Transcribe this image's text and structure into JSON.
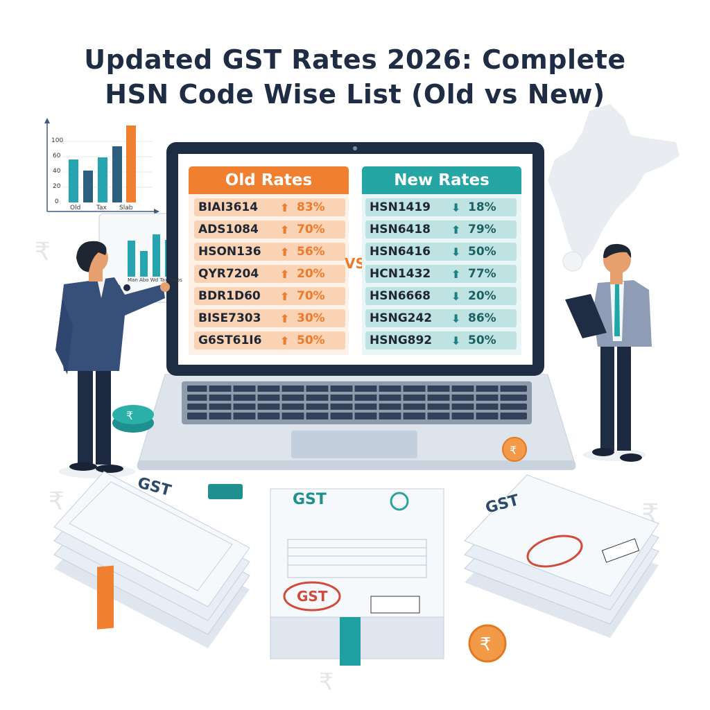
{
  "title": {
    "line1": "Updated GST Rates 2026: Complete",
    "line2": "HSN Code Wise List (Old vs New)"
  },
  "colors": {
    "old": "#f08030",
    "old_row": "#f9d3b4",
    "new": "#26a5a5",
    "new_row": "#bfe3e2",
    "navy": "#1f2d44"
  },
  "chart": {
    "y_ticks": [
      "100",
      "60",
      "40",
      "20",
      "0"
    ],
    "x_labels": [
      "Old",
      "Tax",
      "Slab"
    ],
    "inner_labels": "Man Abo Wd Tax Slabs"
  },
  "old_rates": {
    "header": "Old Rates",
    "rows": [
      {
        "code": "BIAI3614",
        "dir": "up",
        "pct": "83%"
      },
      {
        "code": "ADS1084",
        "dir": "up",
        "pct": "70%"
      },
      {
        "code": "HSON136",
        "dir": "up",
        "pct": "56%"
      },
      {
        "code": "QYR7204",
        "dir": "up",
        "pct": "20%"
      },
      {
        "code": "BDR1D60",
        "dir": "up",
        "pct": "70%"
      },
      {
        "code": "BISE7303",
        "dir": "up",
        "pct": "30%"
      },
      {
        "code": "G6ST61I6",
        "dir": "up",
        "pct": "50%"
      }
    ]
  },
  "vs": "VS",
  "new_rates": {
    "header": "New Rates",
    "rows": [
      {
        "code": "HSN1419",
        "dir": "down",
        "pct": "18%"
      },
      {
        "code": "HSN6418",
        "dir": "up",
        "pct": "79%"
      },
      {
        "code": "HSN6416",
        "dir": "down",
        "pct": "50%"
      },
      {
        "code": "HCN1432",
        "dir": "up",
        "pct": "77%"
      },
      {
        "code": "HSN6668",
        "dir": "down",
        "pct": "20%"
      },
      {
        "code": "HSNG242",
        "dir": "down",
        "pct": "86%"
      },
      {
        "code": "HSNG892",
        "dir": "down",
        "pct": "50%"
      }
    ]
  },
  "documents": {
    "left": "GST",
    "center": "GST",
    "right": "GST",
    "stamp": "GST"
  }
}
